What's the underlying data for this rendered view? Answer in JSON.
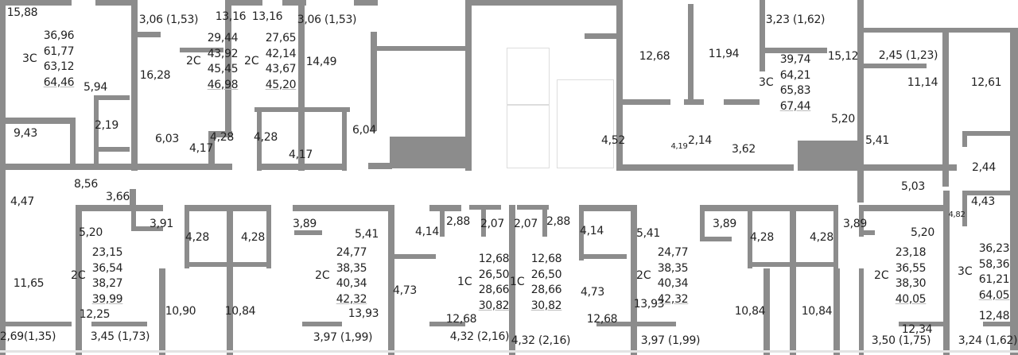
{
  "rooms": [
    "15,88",
    "5,94",
    "9,43",
    "2,19",
    "3,06 (1,53)",
    "16,28",
    "6,03",
    "4,17",
    "13,16",
    "13,16",
    "4,28",
    "4,28",
    "3,06 (1,53)",
    "14,49",
    "6,04",
    "4,17",
    "12,68",
    "11,94",
    "3,23 (1,62)",
    "15,12",
    "5,20",
    "4,52",
    "4,19",
    "2,14",
    "3,62",
    "5,41",
    "2,45 (1,23)",
    "11,14",
    "12,61",
    "2,44",
    "4,43",
    "4,82",
    "5,03",
    "4,47",
    "8,56",
    "3,66",
    "3,91",
    "5,20",
    "11,65",
    "12,25",
    "2,69(1,35)",
    "3,45 (1,73)",
    "4,28",
    "4,28",
    "10,90",
    "10,84",
    "3,89",
    "5,41",
    "4,14",
    "2,88",
    "2,07",
    "13,93",
    "4,73",
    "12,68",
    "3,97 (1,99)",
    "4,32 (2,16)",
    "2,07",
    "2,88",
    "4,14",
    "4,73",
    "12,68",
    "4,32 (2,16)",
    "5,41",
    "3,89",
    "13,93",
    "3,97 (1,99)",
    "4,28",
    "4,28",
    "10,84",
    "10,84",
    "3,89",
    "5,20",
    "12,34",
    "3,50 (1,75)",
    "12,48",
    "3,24 (1,62)"
  ],
  "apartments": [
    {
      "type": "3C",
      "areas": [
        "36,96",
        "61,77",
        "63,12",
        "64,46"
      ]
    },
    {
      "type": "2C",
      "areas": [
        "29,44",
        "43,92",
        "45,45",
        "46,98"
      ]
    },
    {
      "type": "2C",
      "areas": [
        "27,65",
        "42,14",
        "43,67",
        "45,20"
      ]
    },
    {
      "type": "3C",
      "areas": [
        "39,74",
        "64,21",
        "65,83",
        "67,44"
      ]
    },
    {
      "type": "2C",
      "areas": [
        "23,15",
        "36,54",
        "38,27",
        "39,99"
      ]
    },
    {
      "type": "2C",
      "areas": [
        "24,77",
        "38,35",
        "40,34",
        "42,32"
      ]
    },
    {
      "type": "1C",
      "areas": [
        "12,68",
        "26,50",
        "28,66",
        "30,82"
      ]
    },
    {
      "type": "1C",
      "areas": [
        "12,68",
        "26,50",
        "28,66",
        "30,82"
      ]
    },
    {
      "type": "2C",
      "areas": [
        "24,77",
        "38,35",
        "40,34",
        "42,32"
      ]
    },
    {
      "type": "2C",
      "areas": [
        "23,18",
        "36,55",
        "38,30",
        "40,05"
      ]
    },
    {
      "type": "3C",
      "areas": [
        "36,23",
        "58,36",
        "61,21",
        "64,05"
      ]
    }
  ],
  "colors": {
    "wall": "#8c8c8c",
    "background": "#ffffff",
    "text": "#222222"
  }
}
